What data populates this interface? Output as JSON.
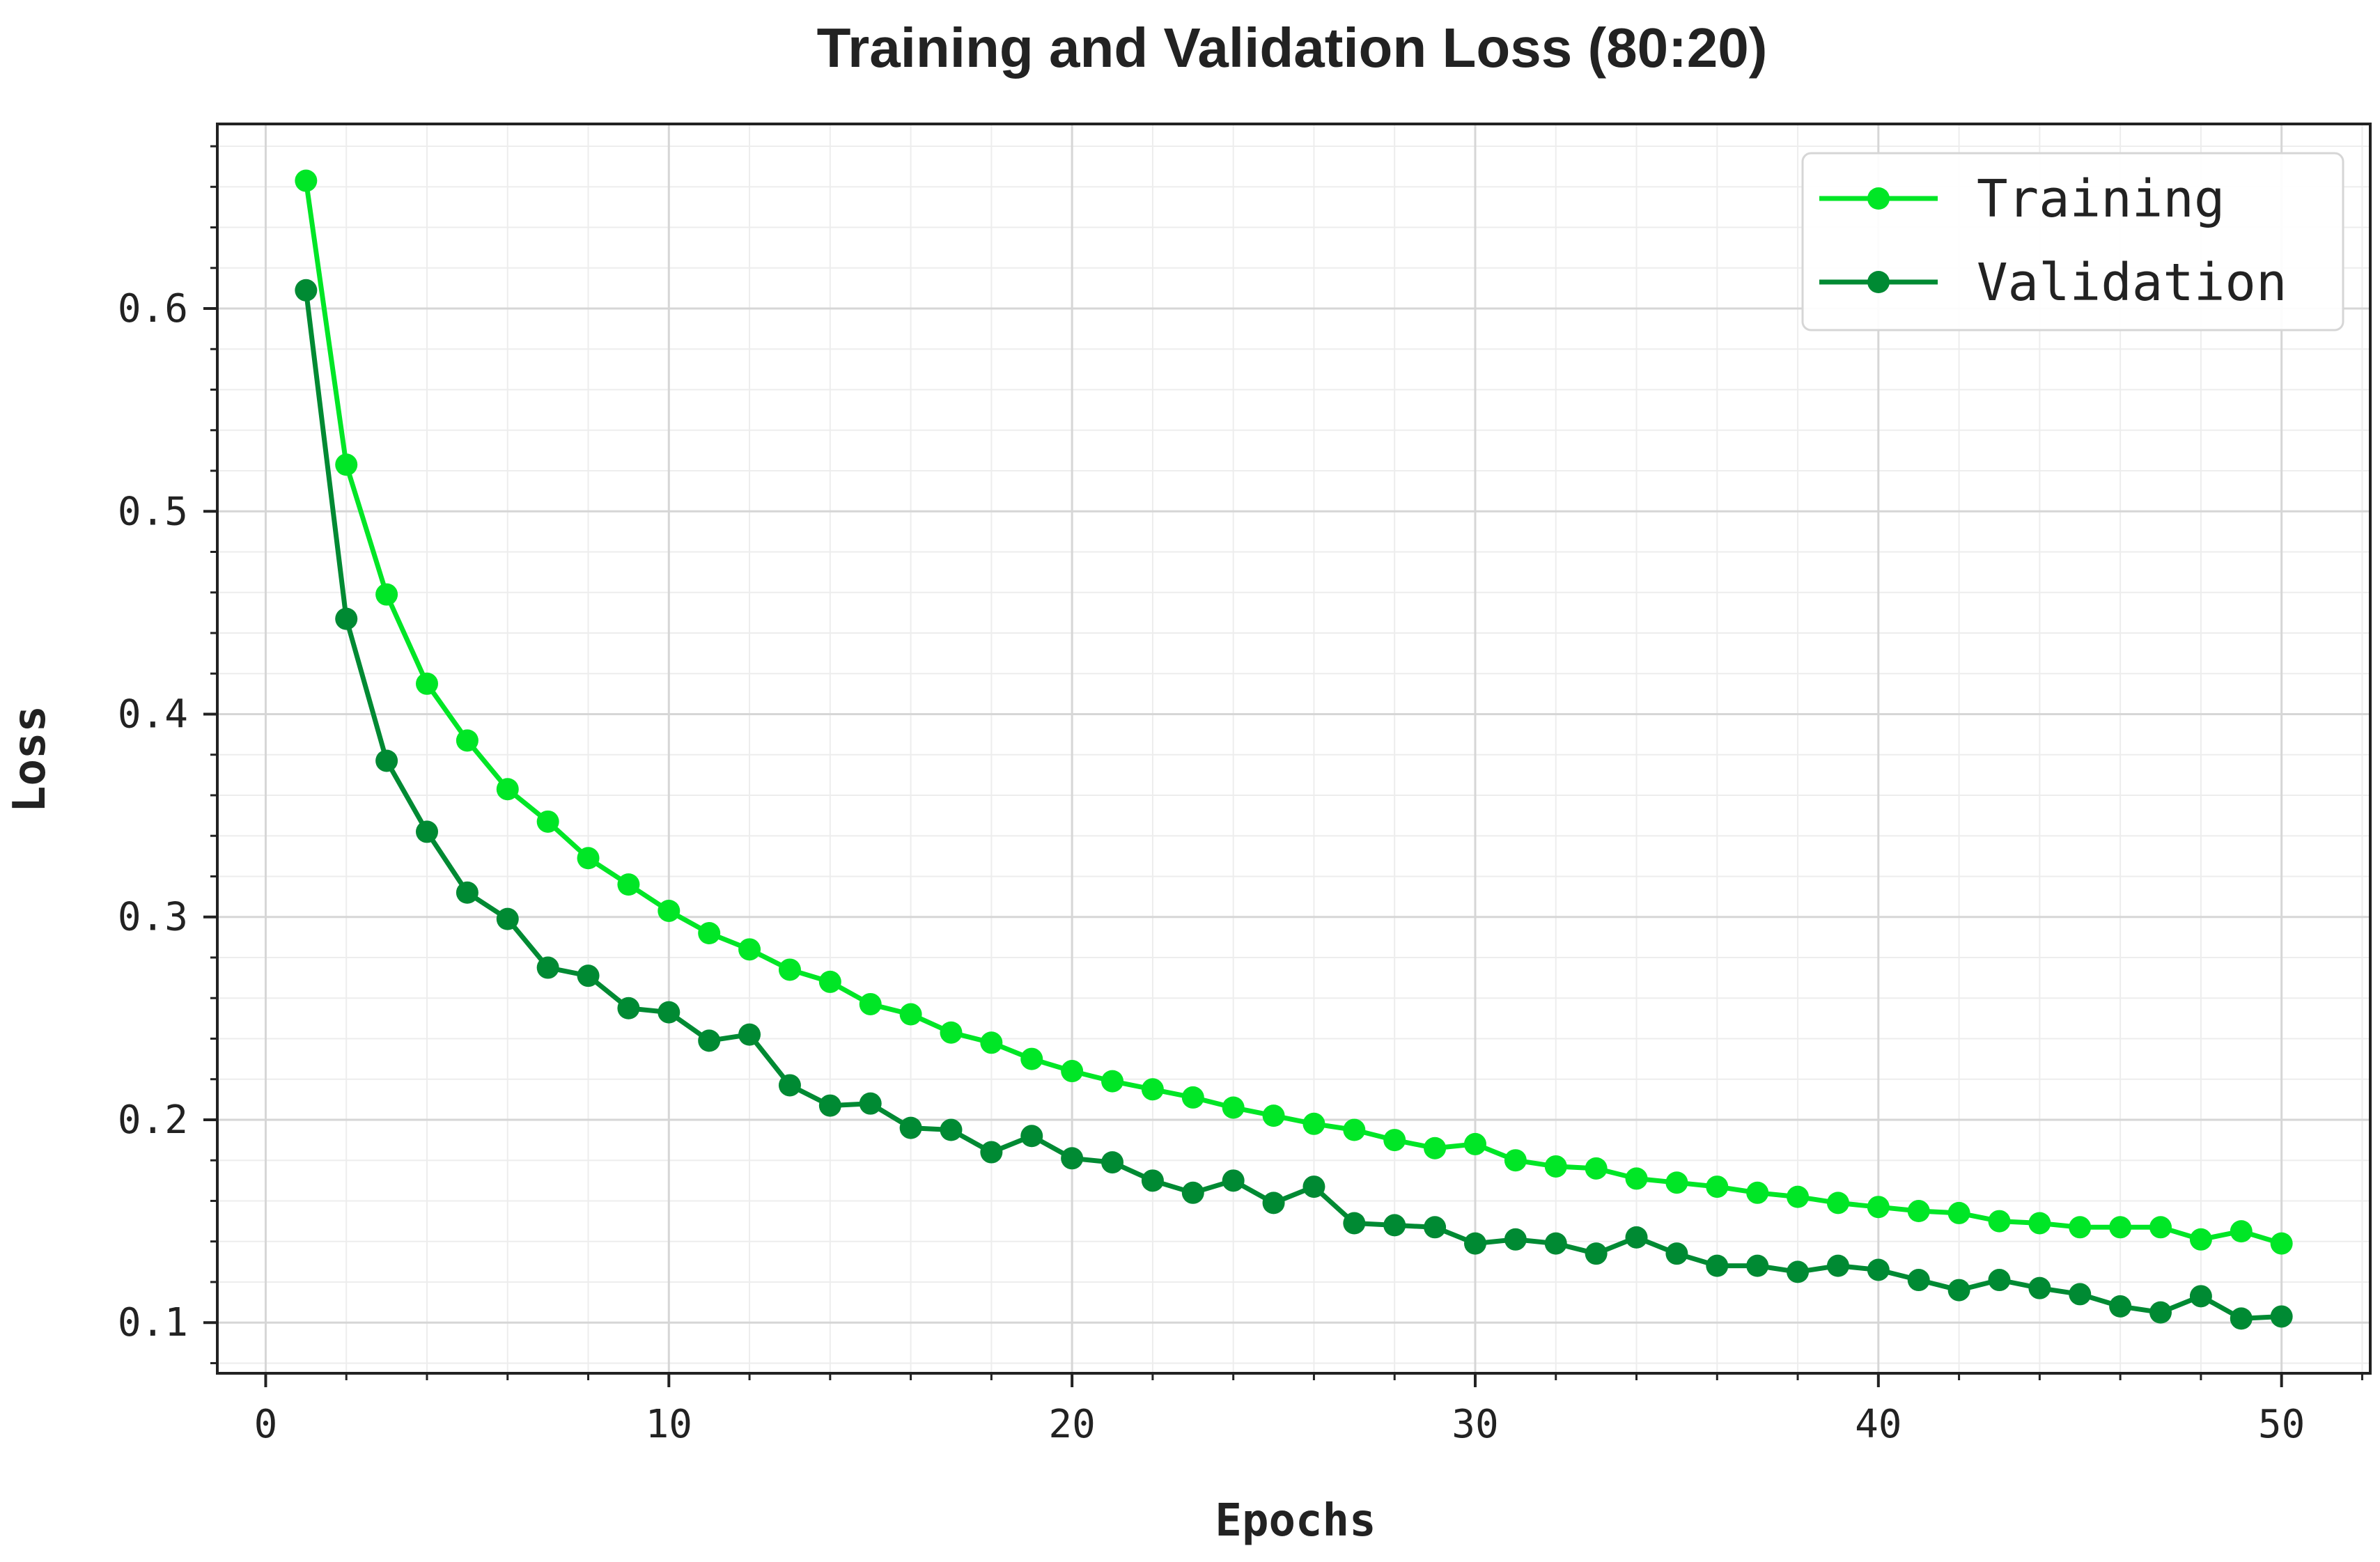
{
  "chart_data": {
    "type": "line",
    "title": "Training and Validation Loss (80:20)",
    "xlabel": "Epochs",
    "ylabel": "Loss",
    "xlim": [
      -1.2,
      52.2
    ],
    "ylim": [
      0.075,
      0.691
    ],
    "xticks": [
      0,
      10,
      20,
      30,
      40,
      50
    ],
    "xtick_labels": [
      "0",
      "10",
      "20",
      "30",
      "40",
      "50"
    ],
    "yticks": [
      0.1,
      0.2,
      0.3,
      0.4,
      0.5,
      0.6
    ],
    "ytick_labels": [
      "0.1",
      "0.2",
      "0.3",
      "0.4",
      "0.5",
      "0.6"
    ],
    "x_minor_step": 2,
    "y_minor_step": 0.02,
    "grid": true,
    "legend_position": "top-right",
    "x": [
      1,
      2,
      3,
      4,
      5,
      6,
      7,
      8,
      9,
      10,
      11,
      12,
      13,
      14,
      15,
      16,
      17,
      18,
      19,
      20,
      21,
      22,
      23,
      24,
      25,
      26,
      27,
      28,
      29,
      30,
      31,
      32,
      33,
      34,
      35,
      36,
      37,
      38,
      39,
      40,
      41,
      42,
      43,
      44,
      45,
      46,
      47,
      48,
      49,
      50
    ],
    "series": [
      {
        "name": "Training",
        "color": "#00e626",
        "values": [
          0.663,
          0.523,
          0.459,
          0.415,
          0.387,
          0.363,
          0.347,
          0.329,
          0.316,
          0.303,
          0.292,
          0.284,
          0.274,
          0.268,
          0.257,
          0.252,
          0.243,
          0.238,
          0.23,
          0.224,
          0.219,
          0.215,
          0.211,
          0.206,
          0.202,
          0.198,
          0.195,
          0.19,
          0.186,
          0.188,
          0.18,
          0.177,
          0.176,
          0.171,
          0.169,
          0.167,
          0.164,
          0.162,
          0.159,
          0.157,
          0.155,
          0.154,
          0.15,
          0.149,
          0.147,
          0.147,
          0.147,
          0.141,
          0.145,
          0.139
        ]
      },
      {
        "name": "Validation",
        "color": "#008a33",
        "values": [
          0.609,
          0.447,
          0.377,
          0.342,
          0.312,
          0.299,
          0.275,
          0.271,
          0.255,
          0.253,
          0.239,
          0.242,
          0.217,
          0.207,
          0.208,
          0.196,
          0.195,
          0.184,
          0.192,
          0.181,
          0.179,
          0.17,
          0.164,
          0.17,
          0.159,
          0.167,
          0.149,
          0.148,
          0.147,
          0.139,
          0.141,
          0.139,
          0.134,
          0.142,
          0.134,
          0.128,
          0.128,
          0.125,
          0.128,
          0.126,
          0.121,
          0.116,
          0.121,
          0.117,
          0.114,
          0.108,
          0.105,
          0.113,
          0.102,
          0.103
        ]
      }
    ]
  }
}
